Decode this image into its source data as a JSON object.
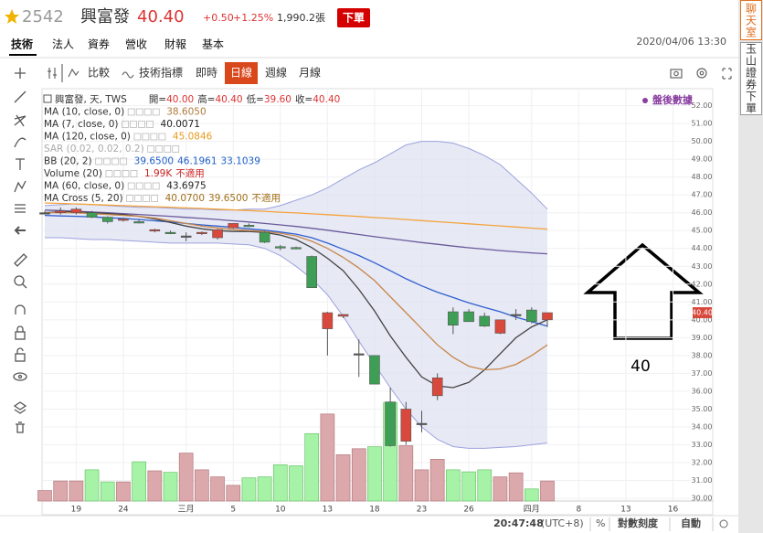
{
  "header": {
    "code": "2542",
    "name": "興富發",
    "price": "40.40",
    "change": "+0.50",
    "change_pct": "+1.25%",
    "volume": "1,990.2張",
    "order_button": "下單"
  },
  "side_tabs": [
    "聊天室",
    "玉山證券下單"
  ],
  "tabs": {
    "items": [
      "技術",
      "法人",
      "資券",
      "營收",
      "財報",
      "基本"
    ],
    "active": 0
  },
  "datetime": "2020/04/06 13:30",
  "toolbar": {
    "items": [
      "比較",
      "技術指標",
      "即時",
      "日線",
      "週線",
      "月線"
    ],
    "active": 3
  },
  "legend": {
    "symbol": "興富發, 天, TWS",
    "ohlc": [
      [
        "開=",
        "40.00"
      ],
      [
        "高=",
        "40.40"
      ],
      [
        "低=",
        "39.60"
      ],
      [
        "收=",
        "40.40"
      ]
    ],
    "indicators": [
      {
        "name": "MA (10, close, 0)",
        "values": [
          "38.6050"
        ],
        "color": "#b07a3a"
      },
      {
        "name": "MA (7, close, 0)",
        "values": [
          "40.0071"
        ],
        "color": "#222222"
      },
      {
        "name": "MA (120, close, 0)",
        "values": [
          "45.0846"
        ],
        "color": "#e89a20"
      },
      {
        "name": "SAR (0.02, 0.02, 0.2)",
        "values": [],
        "color": "#aaaaaa",
        "muted": true
      },
      {
        "name": "BB (20, 2)",
        "values": [
          "39.6500",
          "46.1961",
          "33.1039"
        ],
        "color": "#1f5fc8"
      },
      {
        "name": "Volume (20)",
        "values": [
          "1.99K",
          "不適用"
        ],
        "color": "#cc2222"
      },
      {
        "name": "MA (60, close, 0)",
        "values": [
          "43.6975"
        ],
        "color": "#222222"
      },
      {
        "name": "MA Cross (5, 20)",
        "values": [
          "40.0700",
          "39.6500",
          "不適用"
        ],
        "color": "#a0701a"
      }
    ]
  },
  "after_hours": "盤後數據",
  "annotation": {
    "text": "40"
  },
  "status_bar": {
    "time": "20:47:48",
    "timezone": "(UTC+8)",
    "percent": "%",
    "log_scale": "對數刻度",
    "auto": "自動"
  },
  "chart_data": {
    "type": "candlestick",
    "categories": [
      null,
      null,
      "19",
      null,
      null,
      "24",
      null,
      null,
      null,
      "三月",
      null,
      null,
      "5",
      null,
      null,
      "10",
      null,
      null,
      "13",
      null,
      null,
      "18",
      null,
      null,
      "23",
      null,
      null,
      "26",
      null,
      null,
      null,
      "四月",
      null,
      null,
      "8",
      null,
      null,
      "13",
      null,
      null,
      "16"
    ],
    "open": [
      46.0,
      46.0,
      46.0,
      46.0,
      45.75,
      45.6,
      45.5,
      45.0,
      44.9,
      44.7,
      44.85,
      44.6,
      45.15,
      45.3,
      44.9,
      44.1,
      44.05,
      43.55,
      39.5,
      40.2,
      38.1,
      38.0,
      35.4,
      33.2,
      34.2,
      35.75,
      40.45,
      40.45,
      40.2,
      39.25,
      40.3,
      40.55,
      40.0,
      null,
      null,
      null,
      null,
      null,
      null,
      null,
      null
    ],
    "high": [
      46.1,
      46.3,
      46.3,
      46.1,
      45.8,
      45.7,
      45.6,
      45.1,
      45.0,
      44.9,
      44.95,
      45.1,
      45.4,
      45.4,
      44.95,
      44.2,
      44.1,
      43.6,
      40.45,
      40.3,
      38.9,
      38.0,
      36.2,
      35.4,
      34.9,
      37.0,
      40.7,
      40.6,
      40.4,
      40.0,
      40.6,
      40.7,
      40.4,
      null,
      null,
      null,
      null,
      null,
      null,
      null,
      null
    ],
    "low": [
      45.9,
      45.9,
      45.9,
      45.7,
      45.4,
      45.5,
      45.4,
      44.9,
      44.8,
      44.4,
      44.75,
      44.5,
      45.1,
      45.2,
      44.3,
      43.9,
      43.95,
      41.8,
      38.0,
      40.1,
      36.8,
      36.4,
      32.9,
      33.0,
      33.7,
      35.5,
      39.2,
      39.9,
      39.6,
      39.2,
      40.0,
      39.8,
      39.6,
      null,
      null,
      null,
      null,
      null,
      null,
      null,
      null
    ],
    "close": [
      46.0,
      46.1,
      46.2,
      45.75,
      45.5,
      45.65,
      45.45,
      45.05,
      44.85,
      44.7,
      44.9,
      45.05,
      45.4,
      45.25,
      44.35,
      44.05,
      44.0,
      41.8,
      40.4,
      40.3,
      38.1,
      36.4,
      32.95,
      35.0,
      34.2,
      36.75,
      39.7,
      39.9,
      39.65,
      40.0,
      40.3,
      39.9,
      40.4,
      null,
      null,
      null,
      null,
      null,
      null,
      null,
      null
    ],
    "up_color": "#d9483c",
    "down_color": "#3e9e55",
    "doji_color": "#555555",
    "volume": {
      "values": [
        1.04,
        1.99,
        1.99,
        3.1,
        1.9,
        1.9,
        3.9,
        3.0,
        2.85,
        4.76,
        3.1,
        2.4,
        1.56,
        2.3,
        2.4,
        3.6,
        3.5,
        6.7,
        8.65,
        4.6,
        5.2,
        5.4,
        9.8,
        5.5,
        3.1,
        4.15,
        3.1,
        2.9,
        3.1,
        2.4,
        2.8,
        1.2,
        1.99,
        null,
        null,
        null,
        null,
        null,
        null,
        null,
        null
      ],
      "up_color": "#dba8ab",
      "down_color": "#a6f2a6"
    },
    "bb": {
      "upper": [
        46.4,
        46.45,
        46.5,
        46.45,
        46.4,
        46.35,
        46.3,
        46.3,
        46.25,
        46.2,
        46.2,
        46.15,
        46.15,
        46.2,
        46.2,
        46.4,
        46.7,
        47.0,
        47.4,
        47.9,
        48.4,
        48.8,
        49.3,
        49.8,
        50.0,
        50.0,
        49.9,
        49.6,
        49.2,
        48.7,
        47.9,
        47.1,
        46.2,
        null,
        null,
        null,
        null,
        null,
        null,
        null,
        null
      ],
      "lower": [
        44.6,
        44.6,
        44.55,
        44.5,
        44.5,
        44.45,
        44.4,
        44.35,
        44.3,
        44.3,
        44.3,
        44.3,
        44.25,
        44.2,
        44.0,
        43.6,
        43.0,
        42.3,
        41.4,
        40.2,
        38.8,
        37.5,
        36.2,
        35.0,
        34.0,
        33.3,
        32.9,
        32.8,
        32.8,
        32.85,
        32.9,
        33.0,
        33.1,
        null,
        null,
        null,
        null,
        null,
        null,
        null,
        null
      ],
      "color": "#9ca2dc",
      "fill": "#dfe1f1"
    },
    "lines": [
      {
        "color": "#2f5fd0",
        "values": [
          45.85,
          45.82,
          45.8,
          45.77,
          45.72,
          45.68,
          45.62,
          45.55,
          45.48,
          45.4,
          45.32,
          45.25,
          45.18,
          45.1,
          45.02,
          44.92,
          44.8,
          44.6,
          44.3,
          43.95,
          43.6,
          43.2,
          42.75,
          42.3,
          41.9,
          41.55,
          41.25,
          40.95,
          40.7,
          40.45,
          40.15,
          39.9,
          39.65,
          null,
          null,
          null,
          null,
          null,
          null,
          null,
          null
        ]
      },
      {
        "color": "#6a5a9a",
        "values": [
          46.15,
          46.12,
          46.08,
          46.04,
          46.0,
          45.95,
          45.9,
          45.85,
          45.8,
          45.74,
          45.68,
          45.62,
          45.55,
          45.48,
          45.4,
          45.32,
          45.23,
          45.13,
          45.02,
          44.9,
          44.78,
          44.66,
          44.55,
          44.44,
          44.33,
          44.23,
          44.13,
          44.04,
          43.96,
          43.88,
          43.81,
          43.75,
          43.7,
          null,
          null,
          null,
          null,
          null,
          null,
          null,
          null
        ]
      },
      {
        "color": "#f5a33a",
        "values": [
          46.55,
          46.52,
          46.49,
          46.46,
          46.43,
          46.4,
          46.37,
          46.34,
          46.31,
          46.27,
          46.24,
          46.2,
          46.16,
          46.12,
          46.08,
          46.03,
          45.99,
          45.94,
          45.89,
          45.84,
          45.79,
          45.73,
          45.68,
          45.62,
          45.56,
          45.5,
          45.44,
          45.38,
          45.32,
          45.26,
          45.2,
          45.14,
          45.08,
          null,
          null,
          null,
          null,
          null,
          null,
          null,
          null
        ]
      },
      {
        "color": "#444444",
        "values": [
          46.0,
          46.05,
          46.05,
          46.0,
          45.95,
          45.9,
          45.8,
          45.65,
          45.45,
          45.25,
          45.1,
          45.0,
          44.95,
          44.95,
          44.9,
          44.75,
          44.5,
          44.05,
          43.45,
          42.75,
          41.7,
          40.5,
          39.1,
          37.9,
          36.8,
          36.3,
          36.2,
          36.5,
          37.2,
          38.1,
          39.0,
          39.6,
          40.0,
          null,
          null,
          null,
          null,
          null,
          null,
          null,
          null
        ]
      },
      {
        "color": "#c8874a",
        "values": [
          46.0,
          46.0,
          46.0,
          45.95,
          45.9,
          45.85,
          45.8,
          45.7,
          45.55,
          45.4,
          45.25,
          45.15,
          45.05,
          45.0,
          44.95,
          44.85,
          44.7,
          44.4,
          44.0,
          43.5,
          42.9,
          42.2,
          41.3,
          40.4,
          39.5,
          38.6,
          37.9,
          37.4,
          37.2,
          37.25,
          37.5,
          38.0,
          38.6,
          null,
          null,
          null,
          null,
          null,
          null,
          null,
          null
        ]
      }
    ],
    "ylim": [
      29.85,
      52.95
    ],
    "yticks": [
      {
        "value": 30,
        "label": "30.00"
      },
      {
        "value": 31,
        "label": "31.00"
      },
      {
        "value": 32,
        "label": "32.00"
      },
      {
        "value": 33,
        "label": "33.00"
      },
      {
        "value": 34,
        "label": "34.00"
      },
      {
        "value": 35,
        "label": "35.00"
      },
      {
        "value": 36,
        "label": "36.00"
      },
      {
        "value": 37,
        "label": "37.00"
      },
      {
        "value": 38,
        "label": "38.00"
      },
      {
        "value": 39,
        "label": "39.00"
      },
      {
        "value": 40,
        "label": "40.00"
      },
      {
        "value": 41,
        "label": "41.00"
      },
      {
        "value": 42,
        "label": "42.00"
      },
      {
        "value": 43,
        "label": "43.00"
      },
      {
        "value": 44,
        "label": "44.00"
      },
      {
        "value": 45,
        "label": "45.00"
      },
      {
        "value": 46,
        "label": "46.00"
      },
      {
        "value": 47,
        "label": "47.00"
      },
      {
        "value": 48,
        "label": "48.00"
      },
      {
        "value": 49,
        "label": "49.00"
      },
      {
        "value": 50,
        "label": "50.00"
      },
      {
        "value": 51,
        "label": "51.00"
      },
      {
        "value": 52,
        "label": "52.00"
      }
    ],
    "grid": true
  }
}
